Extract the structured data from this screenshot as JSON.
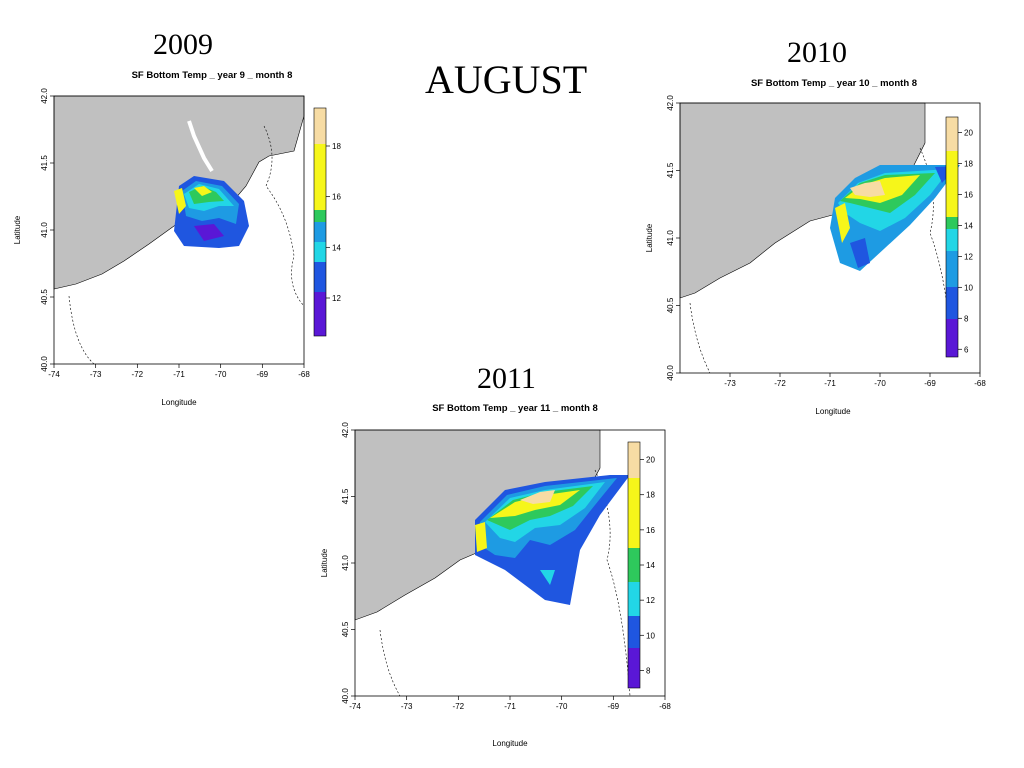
{
  "slide": {
    "title": "AUGUST"
  },
  "colors": {
    "land": "#c0c0c0",
    "scale": [
      "#5a17d6",
      "#1f56e0",
      "#1e9be3",
      "#22d6e6",
      "#2ec95c",
      "#a8e81f",
      "#f6f61a",
      "#f7dca4"
    ]
  },
  "maps": [
    {
      "year_label": "2009",
      "title": "SF Bottom Temp _ year 9 _ month 8",
      "xlabel": "Longitude",
      "ylabel": "Latitude",
      "xticks": [
        "-74",
        "-73",
        "-72",
        "-71",
        "-70",
        "-69",
        "-68"
      ],
      "yticks": [
        "40.0",
        "40.5",
        "41.0",
        "41.5",
        "42.0"
      ],
      "colorbar_ticks": [
        "12",
        "14",
        "16",
        "18"
      ]
    },
    {
      "year_label": "2010",
      "title": "SF Bottom Temp _ year 10 _ month 8",
      "xlabel": "Longitude",
      "ylabel": "Latitude",
      "xticks": [
        "-73",
        "-72",
        "-71",
        "-70",
        "-69",
        "-68"
      ],
      "yticks": [
        "40.0",
        "40.5",
        "41.0",
        "41.5",
        "42.0"
      ],
      "colorbar_ticks": [
        "6",
        "8",
        "10",
        "12",
        "14",
        "16",
        "18",
        "20"
      ]
    },
    {
      "year_label": "2011",
      "title": "SF Bottom Temp _ year 11 _ month 8",
      "xlabel": "Longitude",
      "ylabel": "Latitude",
      "xticks": [
        "-74",
        "-73",
        "-72",
        "-71",
        "-70",
        "-69",
        "-68"
      ],
      "yticks": [
        "40.0",
        "40.5",
        "41.0",
        "41.5",
        "42.0"
      ],
      "colorbar_ticks": [
        "8",
        "10",
        "12",
        "14",
        "16",
        "18",
        "20"
      ]
    }
  ]
}
